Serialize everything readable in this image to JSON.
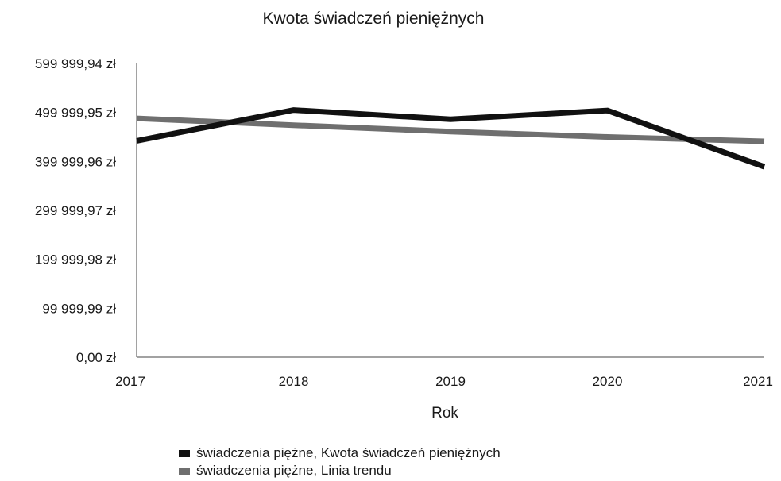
{
  "chart_data": {
    "type": "line",
    "title": "Kwota świadczeń pieniężnych",
    "xlabel": "Rok",
    "ylabel": "",
    "categories": [
      "2017",
      "2018",
      "2019",
      "2020",
      "2021"
    ],
    "yticks": [
      0,
      99999.99,
      199999.98,
      299999.97,
      399999.96,
      499999.95,
      599999.94
    ],
    "ytick_labels": [
      "0,00 zł",
      "99 999,99 zł",
      "199 999,98 zł",
      "299 999,97 zł",
      "399 999,96 zł",
      "499 999,95 zł",
      "599 999,94 zł"
    ],
    "ylim": [
      0,
      599999.94
    ],
    "grid": false,
    "legend_position": "bottom",
    "series": [
      {
        "name": "świadczenia piężne, Kwota świadczeń pieniężnych",
        "color": "#111111",
        "values": [
          442000,
          505000,
          486000,
          504000,
          389000
        ]
      },
      {
        "name": "świadczenia piężne, Linia trendu",
        "color": "#6f6f6f",
        "values": [
          488000,
          474000,
          461000,
          450000,
          441000
        ]
      }
    ]
  }
}
